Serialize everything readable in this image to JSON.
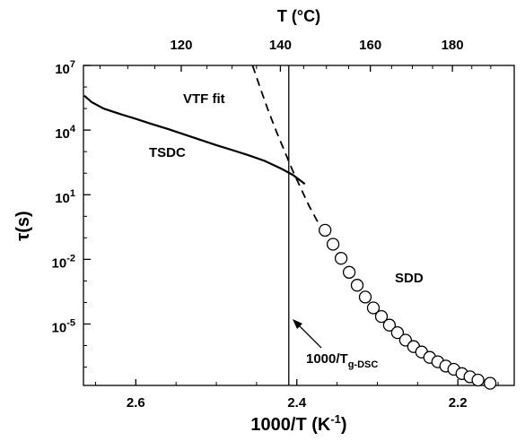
{
  "chart_data": {
    "type": "scatter",
    "title": "",
    "xlabel": "1000/T (K",
    "xlabel_sup": "-1",
    "xlabel_suffix": ")",
    "ylabel": "τ(s)",
    "top_xlabel": "T (°C)",
    "xlim": [
      2.665,
      2.13
    ],
    "x_reversed": true,
    "y_scale": "log",
    "ylim_log10": [
      -7.85,
      7
    ],
    "x_ticks": [
      "2.6",
      "2.4",
      "2.2"
    ],
    "x_tick_values": [
      2.6,
      2.4,
      2.2
    ],
    "top_ticks": [
      "120",
      "140",
      "160",
      "180"
    ],
    "top_tick_values": [
      120,
      140,
      160,
      180
    ],
    "y_tick_exponents": [
      7,
      4,
      1,
      -2,
      -5
    ],
    "y_tick_base": "10",
    "y_tick_labels": [
      "7",
      "4",
      "1",
      "-2",
      "-5"
    ],
    "grid": false,
    "series": [
      {
        "name": "TSDC",
        "style": "solid-line",
        "points": [
          [
            2.664,
            5.6
          ],
          [
            2.655,
            5.3
          ],
          [
            2.64,
            5.0
          ],
          [
            2.62,
            4.75
          ],
          [
            2.6,
            4.52
          ],
          [
            2.58,
            4.28
          ],
          [
            2.56,
            4.05
          ],
          [
            2.54,
            3.8
          ],
          [
            2.52,
            3.55
          ],
          [
            2.5,
            3.3
          ],
          [
            2.48,
            3.07
          ],
          [
            2.46,
            2.83
          ],
          [
            2.44,
            2.57
          ],
          [
            2.42,
            2.22
          ],
          [
            2.405,
            1.92
          ],
          [
            2.39,
            1.5
          ]
        ]
      },
      {
        "name": "VTF fit",
        "style": "dashed-line",
        "points": [
          [
            2.455,
            7.0
          ],
          [
            2.445,
            5.9
          ],
          [
            2.435,
            4.85
          ],
          [
            2.425,
            3.9
          ],
          [
            2.415,
            3.0
          ],
          [
            2.405,
            2.1
          ],
          [
            2.395,
            1.3
          ],
          [
            2.385,
            0.5
          ],
          [
            2.375,
            -0.2
          ],
          [
            2.368,
            -0.6
          ]
        ]
      },
      {
        "name": "SDD",
        "style": "open-circles",
        "points": [
          [
            2.365,
            -0.65
          ],
          [
            2.355,
            -1.3
          ],
          [
            2.345,
            -1.95
          ],
          [
            2.335,
            -2.6
          ],
          [
            2.325,
            -3.2
          ],
          [
            2.315,
            -3.75
          ],
          [
            2.305,
            -4.25
          ],
          [
            2.295,
            -4.65
          ],
          [
            2.285,
            -5.05
          ],
          [
            2.275,
            -5.4
          ],
          [
            2.265,
            -5.75
          ],
          [
            2.255,
            -6.05
          ],
          [
            2.245,
            -6.3
          ],
          [
            2.235,
            -6.55
          ],
          [
            2.225,
            -6.75
          ],
          [
            2.215,
            -6.95
          ],
          [
            2.205,
            -7.1
          ],
          [
            2.195,
            -7.3
          ],
          [
            2.185,
            -7.45
          ],
          [
            2.175,
            -7.6
          ],
          [
            2.16,
            -7.75
          ]
        ]
      }
    ],
    "vline": {
      "x": 2.41
    },
    "annotations": {
      "vtf": "VTF fit",
      "tsdc": "TSDC",
      "sdd": "SDD",
      "tg_main": "1000/T",
      "tg_sub": "g-DSC"
    }
  }
}
